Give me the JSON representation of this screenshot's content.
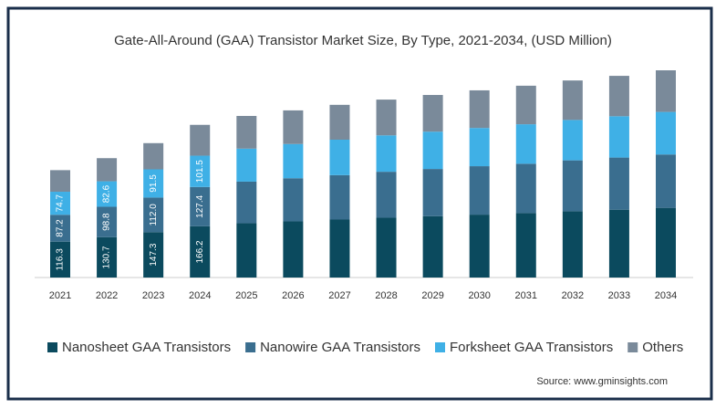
{
  "chart_data": {
    "type": "stacked_bar",
    "title": "Gate-All-Around (GAA) Transistor Market Size, By Type, 2021-2034, (USD Million)",
    "categories": [
      "2021",
      "2022",
      "2023",
      "2024",
      "2025",
      "2026",
      "2027",
      "2028",
      "2029",
      "2030",
      "2031",
      "2032",
      "2033",
      "2034"
    ],
    "series": [
      {
        "name": "Nanosheet GAA Transistors",
        "color": "#0b4a5e",
        "values": [
          116.3,
          130.7,
          147.3,
          166.2,
          176,
          182,
          188,
          194,
          199,
          204,
          209,
          215,
          220,
          226
        ],
        "value_labels": [
          "116.3",
          "130.7",
          "147.3",
          "166.2",
          null,
          null,
          null,
          null,
          null,
          null,
          null,
          null,
          null,
          null
        ]
      },
      {
        "name": "Nanowire GAA Transistors",
        "color": "#3a6e8f",
        "values": [
          87.2,
          98.8,
          112.0,
          127.4,
          135,
          140,
          144,
          149,
          153,
          157,
          160,
          165,
          169,
          173
        ],
        "value_labels": [
          "87.2",
          "98.8",
          "112.0",
          "127.4",
          null,
          null,
          null,
          null,
          null,
          null,
          null,
          null,
          null,
          null
        ]
      },
      {
        "name": "Forksheet GAA Transistors",
        "color": "#3fb0e6",
        "values": [
          74.7,
          82.6,
          91.5,
          101.5,
          107,
          111,
          115,
          118,
          121,
          124,
          128,
          131,
          134,
          138
        ],
        "value_labels": [
          "74.7",
          "82.6",
          "91.5",
          "101.5",
          null,
          null,
          null,
          null,
          null,
          null,
          null,
          null,
          null,
          null
        ]
      },
      {
        "name": "Others",
        "color": "#7a8a9a",
        "values": [
          70,
          75,
          85,
          100,
          106,
          109,
          113,
          116,
          119,
          122,
          125,
          128,
          131,
          135
        ]
      }
    ],
    "source": "Source: www.gminsights.com"
  }
}
